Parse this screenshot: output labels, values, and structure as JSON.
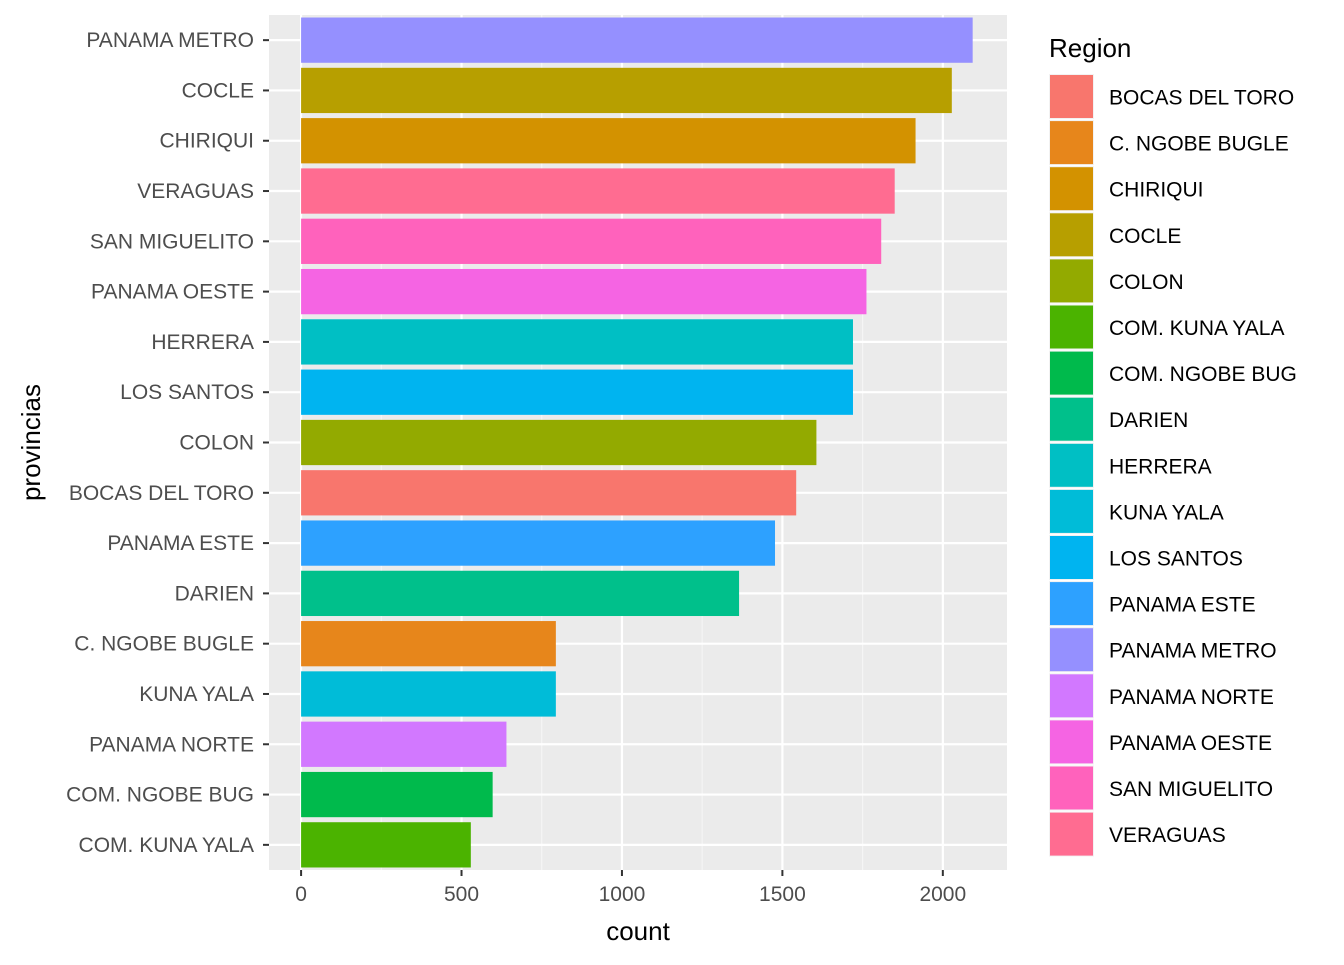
{
  "chart_data": {
    "type": "bar",
    "orientation": "horizontal",
    "categories": [
      "PANAMA METRO",
      "COCLE",
      "CHIRIQUI",
      "VERAGUAS",
      "SAN MIGUELITO",
      "PANAMA OESTE",
      "HERRERA",
      "LOS SANTOS",
      "COLON",
      "BOCAS DEL TORO",
      "PANAMA ESTE",
      "DARIEN",
      "C. NGOBE BUGLE",
      "KUNA YALA",
      "PANAMA NORTE",
      "COM. NGOBE BUG",
      "COM. KUNA YALA"
    ],
    "values": [
      2093,
      2028,
      1915,
      1850,
      1808,
      1762,
      1720,
      1720,
      1606,
      1543,
      1477,
      1365,
      794,
      794,
      640,
      597,
      529
    ],
    "xlabel": "count",
    "ylabel": "provincias",
    "xlim": [
      -100,
      2200
    ],
    "xticks": [
      "0",
      "500",
      "1000",
      "1500",
      "2000"
    ],
    "grid": true,
    "legend_title": "Region",
    "legend_position": "right",
    "legend_entries": [
      {
        "label": "BOCAS DEL TORO",
        "color": "#F8766D"
      },
      {
        "label": "C. NGOBE BUGLE",
        "color": "#E58700"
      },
      {
        "label": "CHIRIQUI",
        "color": "#C99800"
      },
      {
        "label": "COCLE",
        "color": "#A3A500"
      },
      {
        "label": "COLON",
        "color": "#6BB100"
      },
      {
        "label": "COM. KUNA YALA",
        "color": "#00BA38"
      },
      {
        "label": "COM. NGOBE BUG",
        "color": "#00BF7D"
      },
      {
        "label": "DARIEN",
        "color": "#00C0AF"
      },
      {
        "label": "HERRERA",
        "color": "#00BCD8"
      },
      {
        "label": "KUNA YALA",
        "color": "#00B0F6"
      },
      {
        "label": "LOS SANTOS",
        "color": "#619CFF"
      },
      {
        "label": "PANAMA ESTE",
        "color": "#B983FF"
      },
      {
        "label": "PANAMA METRO",
        "color": "#E76BF3"
      },
      {
        "label": "PANAMA NORTE",
        "color": "#FD61D1"
      },
      {
        "label": "PANAMA OESTE",
        "color": "#FF67A4"
      },
      {
        "label": "SAN MIGUELITO",
        "color": "#F8766D"
      },
      {
        "label": "VERAGUAS",
        "color": "#E58700"
      }
    ],
    "bar_colors": {
      "PANAMA METRO": "#9590FF",
      "COCLE": "#B79F00",
      "CHIRIQUI": "#D39200",
      "VERAGUAS": "#FF6C91",
      "SAN MIGUELITO": "#FF62BC",
      "PANAMA OESTE": "#F564E3",
      "HERRERA": "#00BFC4",
      "LOS SANTOS": "#00B4F0",
      "COLON": "#93AA00",
      "BOCAS DEL TORO": "#F8766D",
      "PANAMA ESTE": "#2DA1FF",
      "DARIEN": "#00C08B",
      "C. NGOBE BUGLE": "#E7861B",
      "KUNA YALA": "#00BCD8",
      "PANAMA NORTE": "#D278FF",
      "COM. NGOBE BUG": "#00BA4C",
      "COM. KUNA YALA": "#4BB300"
    },
    "legend_order": [
      "BOCAS DEL TORO",
      "C. NGOBE BUGLE",
      "CHIRIQUI",
      "COCLE",
      "COLON",
      "COM. KUNA YALA",
      "COM. NGOBE BUG",
      "DARIEN",
      "HERRERA",
      "KUNA YALA",
      "LOS SANTOS",
      "PANAMA ESTE",
      "PANAMA METRO",
      "PANAMA NORTE",
      "PANAMA OESTE",
      "SAN MIGUELITO",
      "VERAGUAS"
    ],
    "colors": {
      "panel_background": "#EBEBEB",
      "grid_major": "#FFFFFF",
      "axis_text": "#4D4D4D",
      "axis_title": "#000000"
    }
  }
}
